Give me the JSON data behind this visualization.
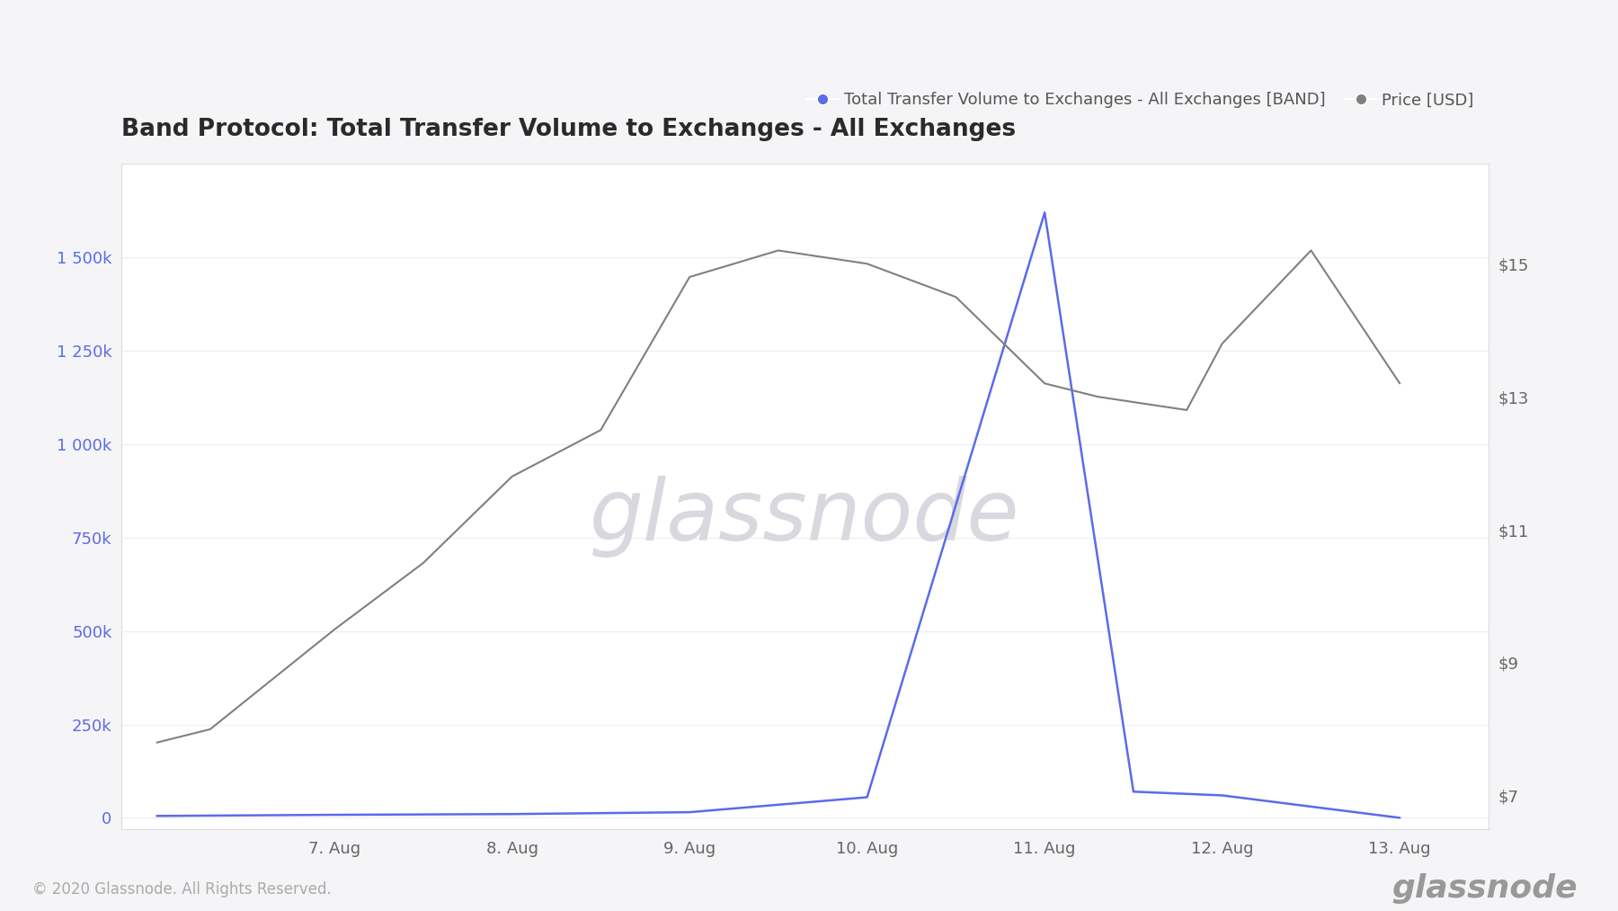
{
  "title": "Band Protocol: Total Transfer Volume to Exchanges - All Exchanges",
  "legend_label_blue": "Total Transfer Volume to Exchanges - All Exchanges [BAND]",
  "legend_label_gray": "Price [USD]",
  "watermark": "glassnode",
  "footer": "© 2020 Glassnode. All Rights Reserved.",
  "x_labels": [
    "7. Aug",
    "8. Aug",
    "9. Aug",
    "10. Aug",
    "11. Aug",
    "12. Aug",
    "13. Aug"
  ],
  "x_positions": [
    1,
    2,
    3,
    4,
    5,
    6,
    7
  ],
  "volume_x": [
    0,
    1,
    2,
    3,
    4,
    5,
    5.5,
    6,
    7
  ],
  "volume_y": [
    5000,
    8000,
    10000,
    15000,
    55000,
    1620000,
    70000,
    60000,
    0
  ],
  "price_x": [
    0,
    0.3,
    1,
    1.5,
    2,
    2.5,
    3,
    3.5,
    4,
    4.5,
    5,
    5.3,
    5.8,
    6,
    6.5,
    7
  ],
  "price_y": [
    7.8,
    8.0,
    9.5,
    10.5,
    11.8,
    12.5,
    14.8,
    15.2,
    15.0,
    14.5,
    13.2,
    13.0,
    12.8,
    13.8,
    15.2,
    13.2
  ],
  "volume_color": "#5b6bea",
  "price_color": "#808080",
  "grid_color": "#eeeeee",
  "background_color": "#f5f5f7",
  "plot_background": "#ffffff",
  "left_yticks": [
    0,
    250000,
    500000,
    750000,
    1000000,
    1250000,
    1500000
  ],
  "left_ylabels": [
    "0",
    "250k",
    "500k",
    "750k",
    "1 000k",
    "1 250k",
    "1 500k"
  ],
  "right_yticks": [
    7,
    9,
    11,
    13,
    15
  ],
  "right_ylabels": [
    "$7",
    "$9",
    "$11",
    "$13",
    "$15"
  ],
  "ylim_left": [
    -30000,
    1750000
  ],
  "ylim_right": [
    6.5,
    16.5
  ],
  "xlim": [
    -0.2,
    7.5
  ],
  "title_fontsize": 19,
  "tick_fontsize": 13,
  "legend_fontsize": 13,
  "footer_fontsize": 12,
  "watermark_fontsize": 68,
  "watermark_color": "#d8d8de",
  "glassnode_logo_color": "#999999",
  "glassnode_logo_fontsize": 26,
  "title_color": "#2a2a2a"
}
